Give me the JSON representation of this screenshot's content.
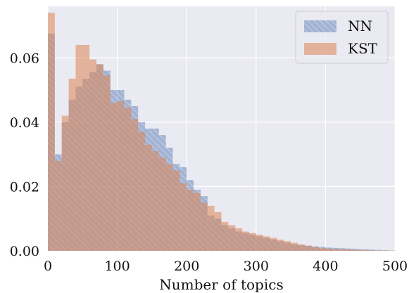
{
  "chart_data": {
    "type": "bar",
    "title": "",
    "xlabel": "Number of topics",
    "ylabel": "",
    "xlim": [
      0,
      500
    ],
    "ylim": [
      0,
      0.076
    ],
    "bin_width": 10,
    "grid": true,
    "legend_position": "top-right",
    "xticks": [
      0,
      100,
      200,
      300,
      400,
      500
    ],
    "yticks": [
      0.0,
      0.02,
      0.04,
      0.06
    ],
    "xtick_labels": [
      "0",
      "100",
      "200",
      "300",
      "400",
      "500"
    ],
    "ytick_labels": [
      "0.00",
      "0.02",
      "0.04",
      "0.06"
    ],
    "bin_starts": [
      0,
      10,
      20,
      30,
      40,
      50,
      60,
      70,
      80,
      90,
      100,
      110,
      120,
      130,
      140,
      150,
      160,
      170,
      180,
      190,
      200,
      210,
      220,
      230,
      240,
      250,
      260,
      270,
      280,
      290,
      300,
      310,
      320,
      330,
      340,
      350,
      360,
      370,
      380,
      390,
      400,
      410,
      420,
      430,
      440,
      450,
      460,
      470,
      480,
      490
    ],
    "series": [
      {
        "name": "NN",
        "color": "#4c72b0",
        "hatch": "diagonal",
        "values": [
          0.0675,
          0.03,
          0.04,
          0.047,
          0.051,
          0.0535,
          0.0555,
          0.058,
          0.056,
          0.05,
          0.05,
          0.047,
          0.045,
          0.04,
          0.038,
          0.038,
          0.036,
          0.032,
          0.027,
          0.026,
          0.022,
          0.019,
          0.017,
          0.011,
          0.01,
          0.008,
          0.007,
          0.006,
          0.0055,
          0.005,
          0.0045,
          0.004,
          0.0035,
          0.003,
          0.0025,
          0.002,
          0.0018,
          0.0016,
          0.0014,
          0.0012,
          0.001,
          0.0009,
          0.0008,
          0.0007,
          0.0006,
          0.0005,
          0.0004,
          0.0003,
          0.0002,
          0.0001
        ]
      },
      {
        "name": "KST",
        "color": "#dd8452",
        "hatch": "none",
        "values": [
          0.074,
          0.028,
          0.042,
          0.0535,
          0.064,
          0.064,
          0.0595,
          0.058,
          0.0545,
          0.046,
          0.0465,
          0.0445,
          0.041,
          0.037,
          0.033,
          0.031,
          0.029,
          0.027,
          0.025,
          0.021,
          0.019,
          0.018,
          0.015,
          0.014,
          0.012,
          0.009,
          0.008,
          0.007,
          0.006,
          0.0055,
          0.005,
          0.0045,
          0.004,
          0.0035,
          0.003,
          0.0025,
          0.002,
          0.0016,
          0.0012,
          0.0008,
          0.0007,
          0.0006,
          0.0005,
          0.0004,
          0.0003,
          0.0002,
          0.0002,
          0.0001,
          0.0001,
          0.0001
        ]
      }
    ]
  }
}
